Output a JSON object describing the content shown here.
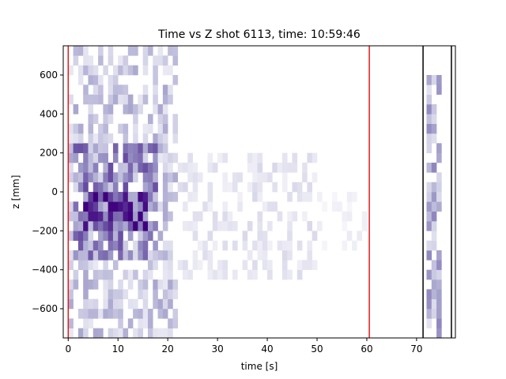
{
  "chart_data": {
    "type": "heatmap",
    "title": "Time vs Z shot 6113, time: 10:59:46",
    "xlabel": "time [s]",
    "ylabel": "z [mm]",
    "xlim": [
      -1,
      77.8
    ],
    "ylim": [
      -750,
      750
    ],
    "xticks": [
      0,
      10,
      20,
      30,
      40,
      50,
      60,
      70
    ],
    "yticks": [
      -600,
      -400,
      -200,
      0,
      200,
      400,
      600
    ],
    "colormap": "Purples",
    "bin_width_s": 1,
    "bin_height_mm": 50,
    "grid": false,
    "vlines": [
      {
        "x": 0,
        "color": "#e41a1c"
      },
      {
        "x": 60.5,
        "color": "#e41a1c"
      },
      {
        "x": 71.3,
        "color": "#000000"
      },
      {
        "x": 77.0,
        "color": "#000000"
      }
    ],
    "density_regions": [
      {
        "t0": 0,
        "t1": 22,
        "z0": -750,
        "z1": 750,
        "level": 0.35
      },
      {
        "t0": 1,
        "t1": 18,
        "z0": -350,
        "z1": 250,
        "level": 0.6
      },
      {
        "t0": 3,
        "t1": 16,
        "z0": -200,
        "z1": 0,
        "level": 0.85
      },
      {
        "t0": 22,
        "t1": 50,
        "z0": -450,
        "z1": 200,
        "level": 0.2
      },
      {
        "t0": 50,
        "t1": 60,
        "z0": -300,
        "z1": 0,
        "level": 0.1
      },
      {
        "t0": 72,
        "t1": 75,
        "z0": -750,
        "z1": 600,
        "level": 0.45
      }
    ]
  }
}
